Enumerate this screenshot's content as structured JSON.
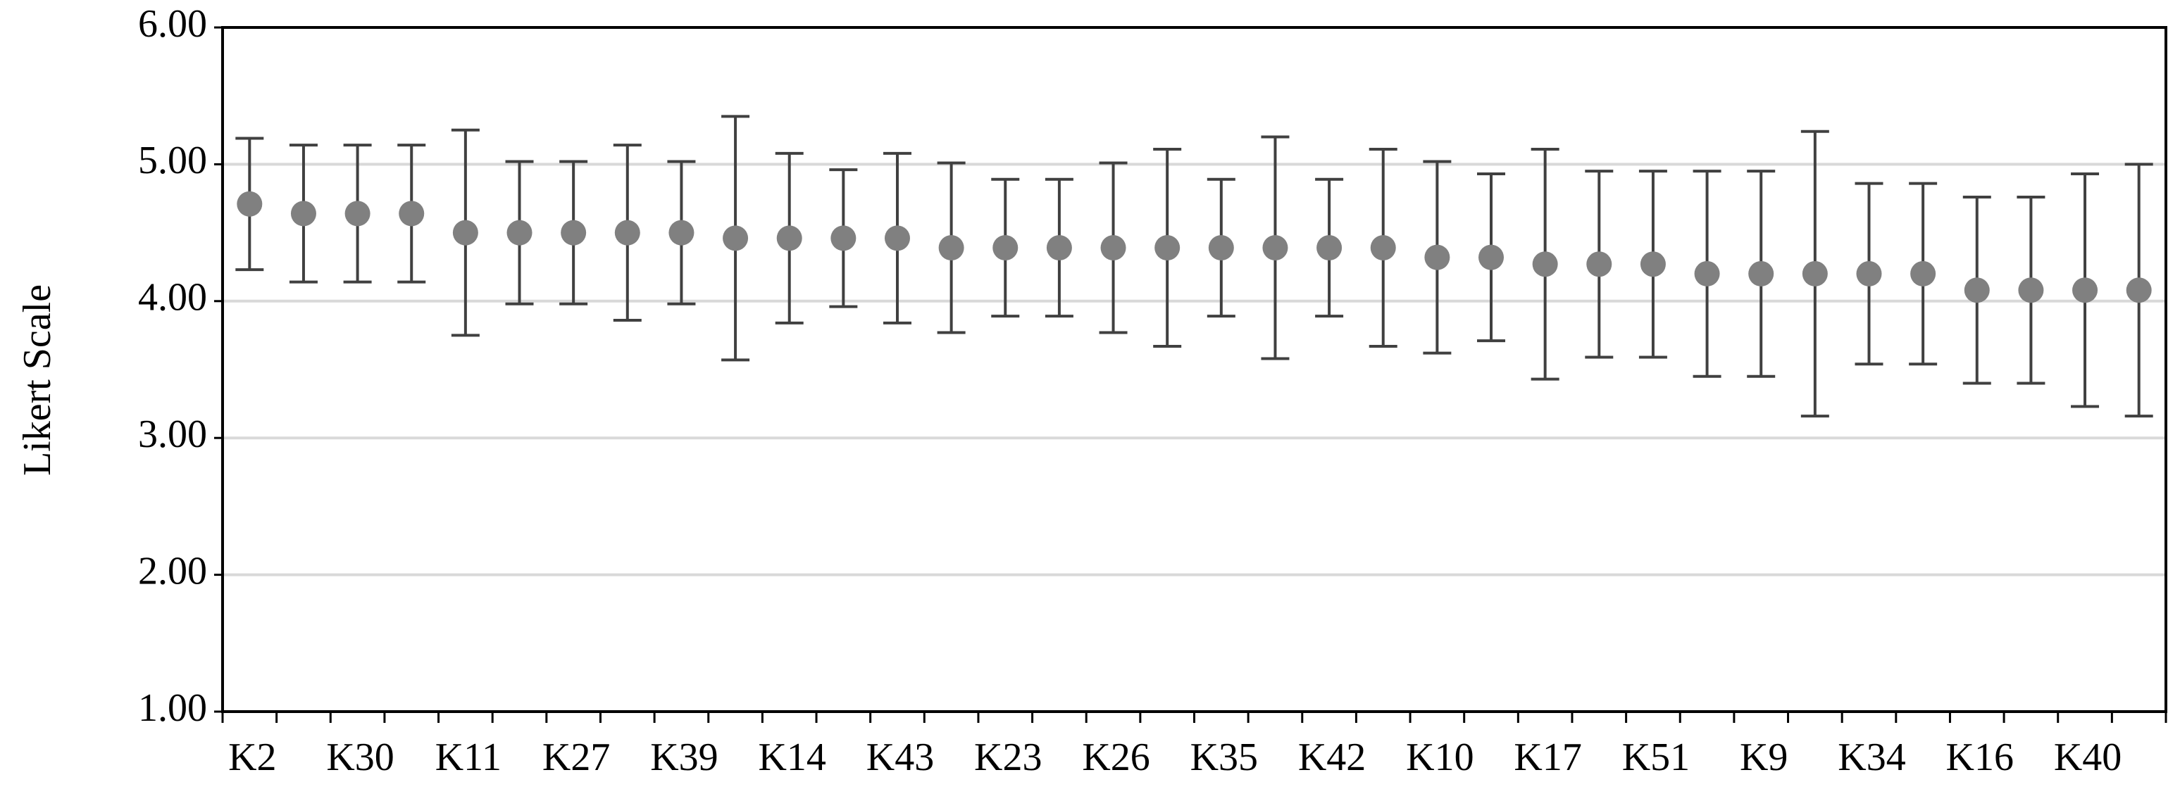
{
  "chart_data": {
    "type": "point",
    "y_label": "Likert Scale",
    "categories": [
      "K2",
      null,
      "K30",
      null,
      "K11",
      null,
      "K27",
      null,
      "K39",
      null,
      "K14",
      null,
      "K43",
      null,
      "K23",
      null,
      "K26",
      null,
      "K35",
      null,
      "K42",
      null,
      "K10",
      null,
      "K17",
      null,
      "K51",
      null,
      "K9",
      null,
      "K34",
      null,
      "K16",
      null,
      "K40",
      null
    ],
    "values": [
      4.71,
      4.64,
      4.64,
      4.64,
      4.5,
      4.5,
      4.5,
      4.5,
      4.5,
      4.46,
      4.46,
      4.46,
      4.46,
      4.39,
      4.39,
      4.39,
      4.39,
      4.39,
      4.39,
      4.39,
      4.39,
      4.39,
      4.32,
      4.32,
      4.27,
      4.27,
      4.27,
      4.2,
      4.2,
      4.2,
      4.2,
      4.2,
      4.08,
      4.08,
      4.08,
      4.08
    ],
    "errors": [
      0.48,
      0.5,
      0.5,
      0.5,
      0.75,
      0.52,
      0.52,
      0.64,
      0.52,
      0.89,
      0.62,
      0.5,
      0.62,
      0.62,
      0.5,
      0.5,
      0.62,
      0.72,
      0.5,
      0.81,
      0.5,
      0.72,
      0.7,
      0.61,
      0.84,
      0.68,
      0.68,
      0.75,
      0.75,
      1.04,
      0.66,
      0.66,
      0.68,
      0.68,
      0.85,
      0.92
    ],
    "color": "#808080",
    "error_color": "#404040",
    "ylim": [
      1,
      6
    ],
    "yticks": [
      {
        "value": 1,
        "label": "1.00"
      },
      {
        "value": 2,
        "label": "2.00"
      },
      {
        "value": 3,
        "label": "3.00"
      },
      {
        "value": 4,
        "label": "4.00"
      },
      {
        "value": 5,
        "label": "5.00"
      },
      {
        "value": 6,
        "label": "6.00"
      }
    ],
    "grid": true
  }
}
